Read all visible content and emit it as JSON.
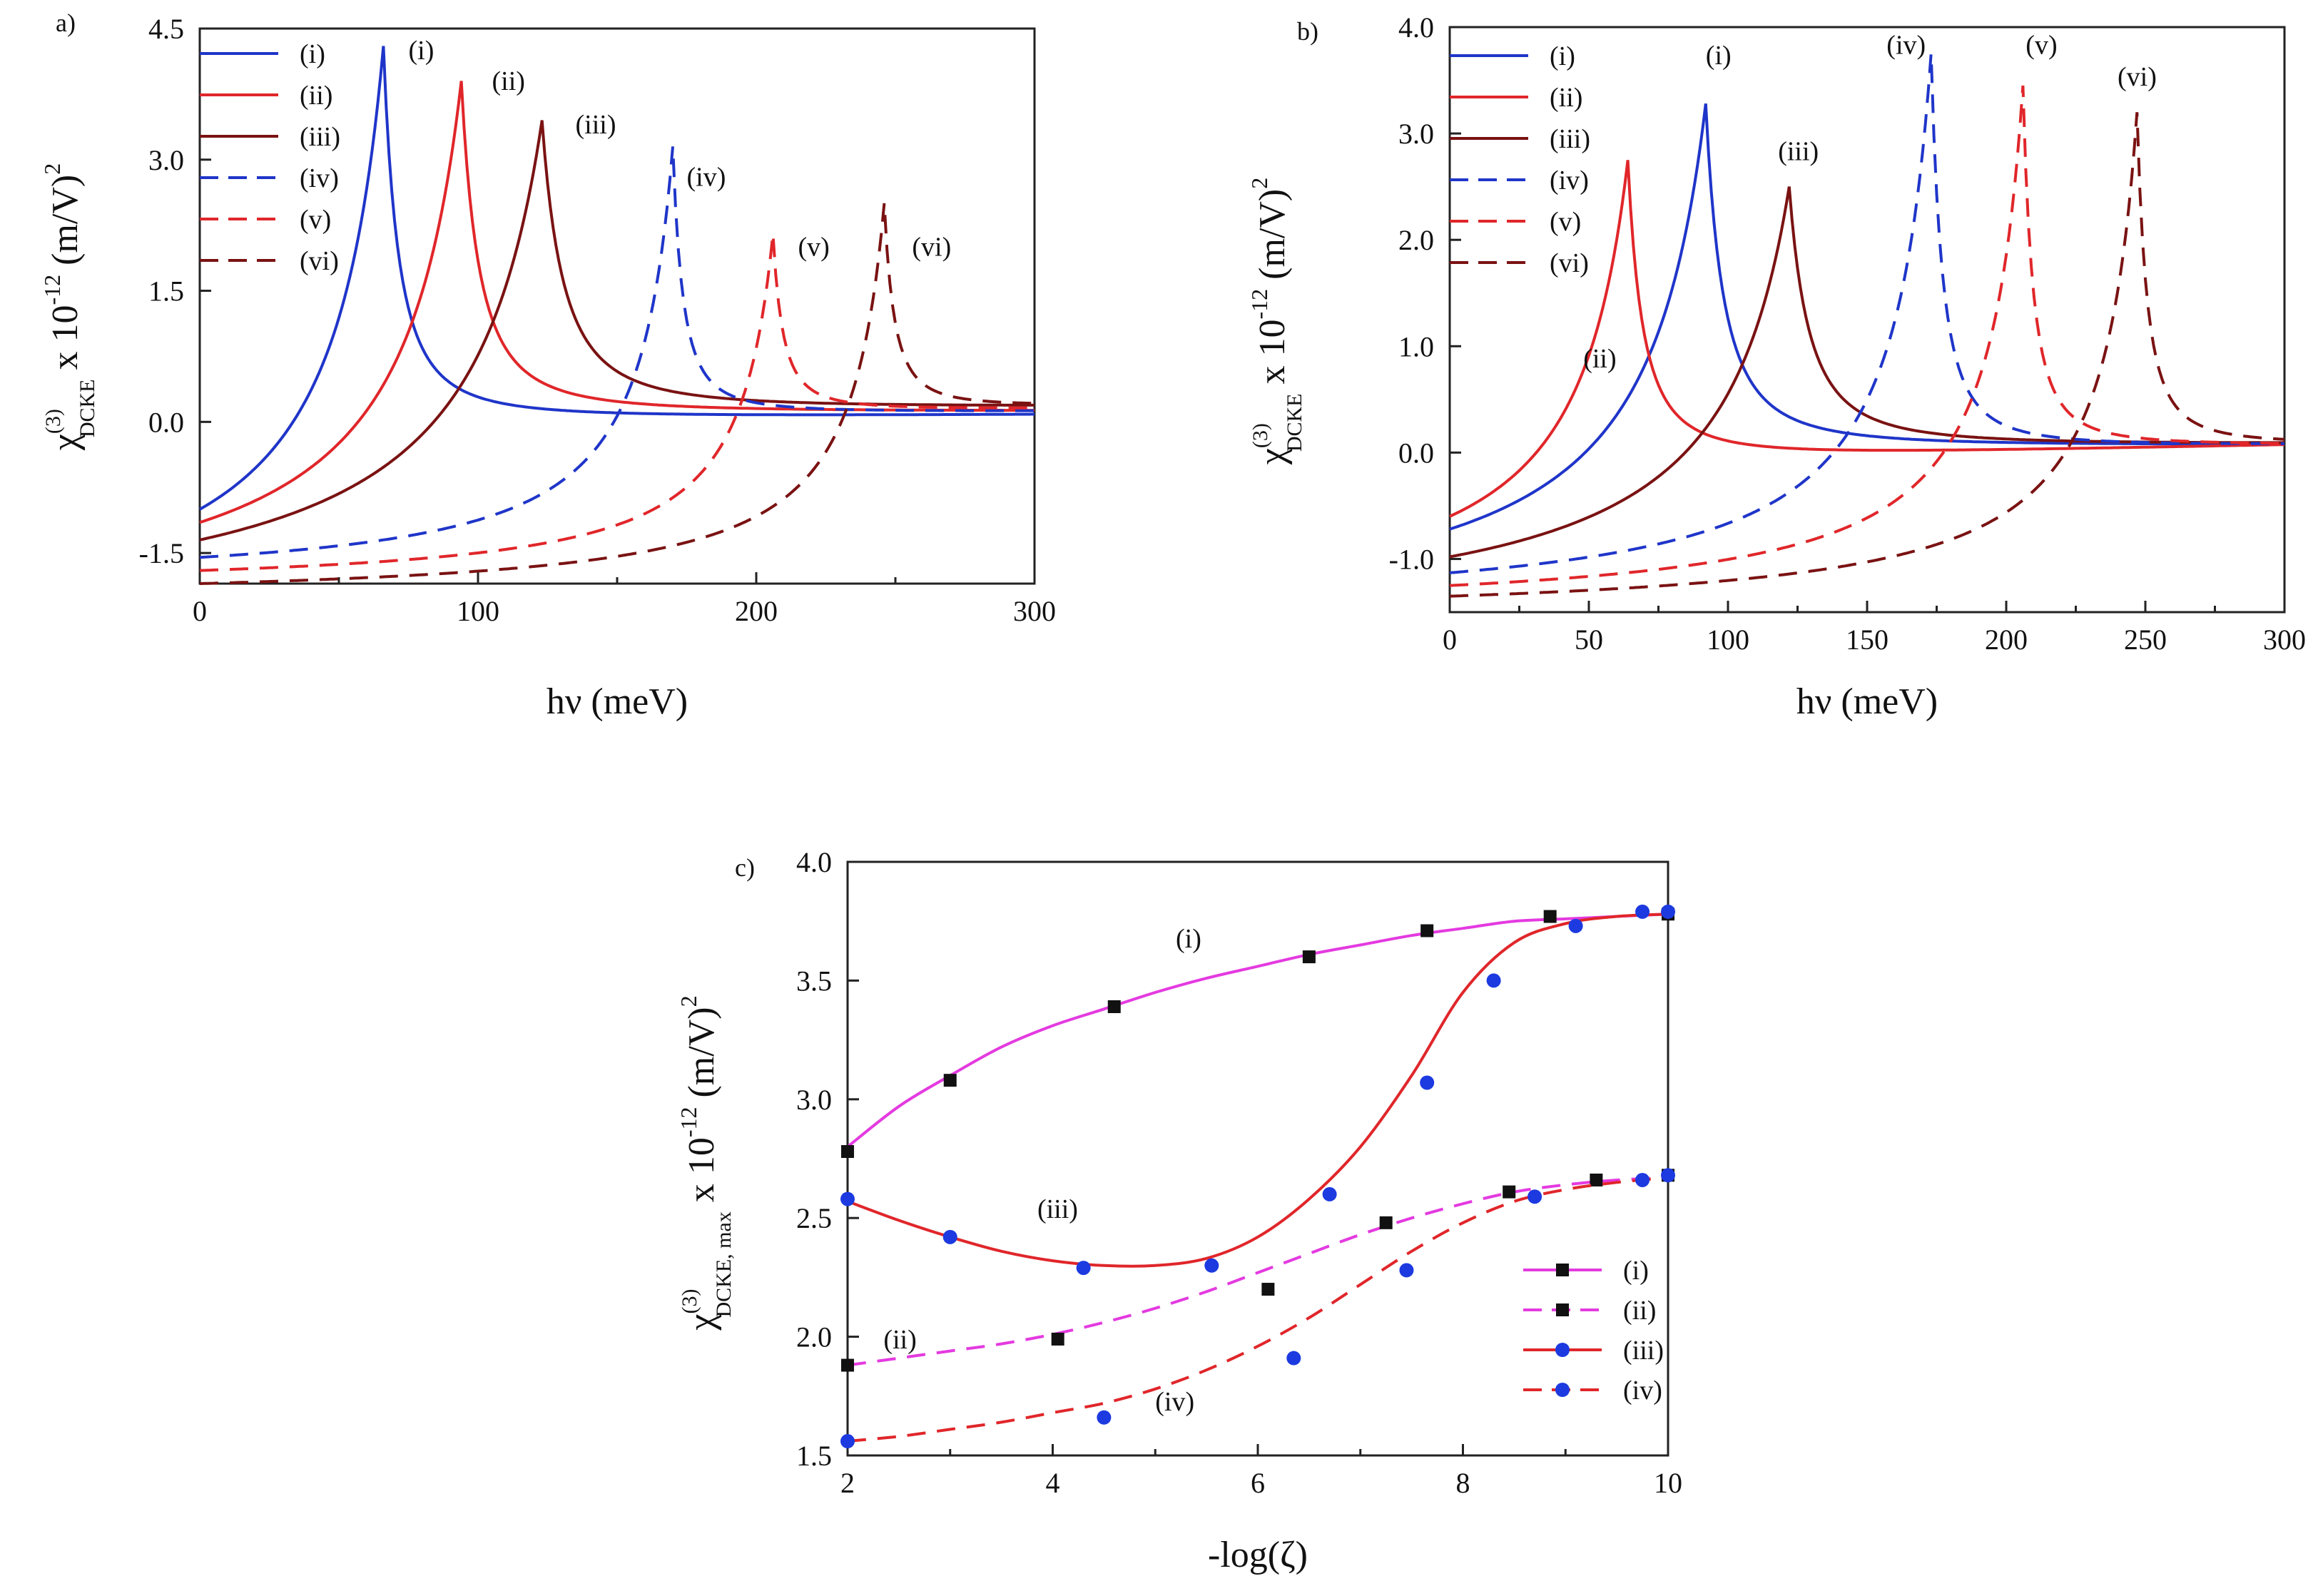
{
  "figure": {
    "colors": {
      "blue": "#1f35c9",
      "red": "#e0262a",
      "darkred": "#7a1212",
      "magenta": "#e43ae0",
      "marker_square": "#111111",
      "marker_circle": "#1c3ae0"
    }
  },
  "chart_data": [
    {
      "panel": "a)",
      "type": "line",
      "xlabel": "hν (meV)",
      "ylabel_main": "χ",
      "ylabel_sup": "(3)",
      "ylabel_sub": "DCKE",
      "ylabel_rest": " x 10",
      "ylabel_exp": "-12",
      "ylabel_unit": " (m/V)",
      "ylabel_unit_exp": "2",
      "xlim": [
        0,
        300
      ],
      "ylim": [
        -1.85,
        4.5
      ],
      "xticks": [
        0,
        100,
        200,
        300
      ],
      "xtick_labels": [
        "0",
        "100",
        "200",
        "300"
      ],
      "yticks": [
        -1.5,
        0.0,
        1.5,
        3.0,
        4.5
      ],
      "ytick_labels": [
        "-1.5",
        "0.0",
        "1.5",
        "3.0",
        "4.5"
      ],
      "legend_position": "top-left",
      "series": [
        {
          "name": "(i)",
          "color": "blue",
          "dash": "solid",
          "start": -1.0,
          "peak_x": 66,
          "peak_y": 4.3,
          "end": 0.08,
          "width": 12,
          "baseline": 0.03,
          "label_x": 75,
          "label_y": 4.15
        },
        {
          "name": "(ii)",
          "color": "red",
          "dash": "solid",
          "start": -1.15,
          "peak_x": 94,
          "peak_y": 3.9,
          "end": 0.12,
          "width": 14,
          "baseline": 0.1,
          "label_x": 105,
          "label_y": 3.8
        },
        {
          "name": "(iii)",
          "color": "darkred",
          "dash": "solid",
          "start": -1.35,
          "peak_x": 123,
          "peak_y": 3.45,
          "end": 0.17,
          "width": 17,
          "baseline": 0.14,
          "label_x": 135,
          "label_y": 3.3
        },
        {
          "name": "(iv)",
          "color": "blue",
          "dash": "dashed",
          "start": -1.55,
          "peak_x": 170,
          "peak_y": 3.15,
          "end": 0.12,
          "width": 8,
          "baseline": 0.1,
          "label_x": 175,
          "label_y": 2.7
        },
        {
          "name": "(v)",
          "color": "red",
          "dash": "dashed",
          "start": -1.7,
          "peak_x": 206,
          "peak_y": 2.15,
          "end": 0.15,
          "width": 8,
          "baseline": 0.13,
          "label_x": 215,
          "label_y": 1.9
        },
        {
          "name": "(vi)",
          "color": "darkred",
          "dash": "dashed",
          "start": -1.85,
          "peak_x": 246,
          "peak_y": 2.5,
          "end": 0.18,
          "width": 8,
          "baseline": 0.16,
          "label_x": 256,
          "label_y": 1.9
        }
      ]
    },
    {
      "panel": "b)",
      "type": "line",
      "xlabel": "hν (meV)",
      "ylabel_main": "χ",
      "ylabel_sup": "(3)",
      "ylabel_sub": "DCKE",
      "ylabel_rest": " x 10",
      "ylabel_exp": "-12",
      "ylabel_unit": " (m/V)",
      "ylabel_unit_exp": "2",
      "xlim": [
        0,
        300
      ],
      "ylim": [
        -1.5,
        4.0
      ],
      "xticks": [
        0,
        50,
        100,
        150,
        200,
        250,
        300
      ],
      "xtick_labels": [
        "0",
        "50",
        "100",
        "150",
        "200",
        "250",
        "300"
      ],
      "yticks": [
        -1.0,
        0.0,
        1.0,
        2.0,
        3.0,
        4.0
      ],
      "ytick_labels": [
        "-1.0",
        "0.0",
        "1.0",
        "2.0",
        "3.0",
        "4.0"
      ],
      "legend_position": "top-left",
      "series": [
        {
          "name": "(i)",
          "color": "blue",
          "dash": "solid",
          "start": -0.72,
          "peak_x": 92,
          "peak_y": 3.28,
          "end": 0.07,
          "width": 14,
          "baseline": 0.05,
          "label_x": 92,
          "label_y": 3.65
        },
        {
          "name": "(ii)",
          "color": "red",
          "dash": "solid",
          "start": -0.6,
          "peak_x": 64,
          "peak_y": 2.75,
          "end": 0.07,
          "width": 12,
          "baseline": -0.06,
          "label_x": 48,
          "label_y": 0.8
        },
        {
          "name": "(iii)",
          "color": "darkred",
          "dash": "solid",
          "start": -0.98,
          "peak_x": 122,
          "peak_y": 2.5,
          "end": 0.08,
          "width": 16,
          "baseline": 0.06,
          "label_x": 118,
          "label_y": 2.75
        },
        {
          "name": "(iv)",
          "color": "blue",
          "dash": "dashed",
          "start": -1.13,
          "peak_x": 173,
          "peak_y": 3.75,
          "end": 0.07,
          "width": 9,
          "baseline": 0.05,
          "label_x": 157,
          "label_y": 3.75
        },
        {
          "name": "(v)",
          "color": "red",
          "dash": "dashed",
          "start": -1.25,
          "peak_x": 206,
          "peak_y": 3.45,
          "end": 0.07,
          "width": 8,
          "baseline": 0.06,
          "label_x": 207,
          "label_y": 3.75
        },
        {
          "name": "(vi)",
          "color": "darkred",
          "dash": "dashed",
          "start": -1.35,
          "peak_x": 247,
          "peak_y": 3.2,
          "end": 0.08,
          "width": 8,
          "baseline": 0.07,
          "label_x": 240,
          "label_y": 3.45
        }
      ]
    },
    {
      "panel": "c)",
      "type": "line",
      "xlabel": "-log(ζ)",
      "ylabel_main": "χ",
      "ylabel_sup": "(3)",
      "ylabel_sub": "DCKE, max",
      "ylabel_rest": " x 10",
      "ylabel_exp": "-12",
      "ylabel_unit": " (m/V)",
      "ylabel_unit_exp": "2",
      "xlim": [
        2,
        10
      ],
      "ylim": [
        1.5,
        4.0
      ],
      "xticks": [
        2,
        4,
        6,
        8,
        10
      ],
      "xtick_labels": [
        "2",
        "4",
        "6",
        "8",
        "10"
      ],
      "yticks": [
        1.5,
        2.0,
        2.5,
        3.0,
        3.5,
        4.0
      ],
      "ytick_labels": [
        "1.5",
        "2.0",
        "2.5",
        "3.0",
        "3.5",
        "4.0"
      ],
      "legend_position": "bottom-right",
      "series": [
        {
          "name": "(i)",
          "color": "magenta",
          "dash": "solid",
          "marker": "square",
          "x": [
            2.0,
            3.0,
            4.6,
            6.5,
            7.65,
            8.85,
            10.0
          ],
          "y": [
            2.78,
            3.08,
            3.39,
            3.6,
            3.71,
            3.77,
            3.78
          ],
          "fit_x": [
            2.0,
            2.5,
            3.0,
            3.5,
            4.0,
            4.5,
            5.0,
            5.5,
            6.0,
            6.5,
            7.0,
            7.5,
            8.0,
            8.5,
            9.0,
            9.5,
            10.0
          ],
          "fit_y": [
            2.8,
            2.97,
            3.1,
            3.22,
            3.31,
            3.38,
            3.45,
            3.51,
            3.56,
            3.61,
            3.65,
            3.69,
            3.72,
            3.75,
            3.76,
            3.77,
            3.78
          ],
          "label_x": 5.2,
          "label_y": 3.64
        },
        {
          "name": "(ii)",
          "color": "magenta",
          "dash": "dashed",
          "marker": "square",
          "x": [
            2.0,
            4.05,
            6.1,
            7.25,
            8.45,
            9.3,
            10.0
          ],
          "y": [
            1.88,
            1.99,
            2.2,
            2.48,
            2.61,
            2.66,
            2.68
          ],
          "fit_x": [
            2.0,
            2.5,
            3.0,
            3.5,
            4.0,
            4.5,
            5.0,
            5.5,
            6.0,
            6.5,
            7.0,
            7.5,
            8.0,
            8.5,
            9.0,
            9.5,
            10.0
          ],
          "fit_y": [
            1.88,
            1.91,
            1.94,
            1.97,
            2.01,
            2.06,
            2.12,
            2.19,
            2.27,
            2.35,
            2.43,
            2.5,
            2.56,
            2.61,
            2.64,
            2.66,
            2.67
          ],
          "label_x": 2.35,
          "label_y": 1.95
        },
        {
          "name": "(iii)",
          "color": "red",
          "dash": "solid",
          "marker": "circle",
          "x": [
            2.0,
            3.0,
            4.3,
            5.55,
            6.7,
            7.65,
            8.3,
            9.1,
            9.75,
            10.0
          ],
          "y": [
            2.58,
            2.42,
            2.29,
            2.3,
            2.6,
            3.07,
            3.5,
            3.73,
            3.79,
            3.79
          ],
          "fit_x": [
            2.0,
            2.5,
            3.0,
            3.5,
            4.0,
            4.5,
            5.0,
            5.5,
            6.0,
            6.5,
            7.0,
            7.5,
            8.0,
            8.5,
            9.0,
            9.5,
            10.0
          ],
          "fit_y": [
            2.57,
            2.49,
            2.42,
            2.36,
            2.32,
            2.3,
            2.3,
            2.33,
            2.42,
            2.58,
            2.8,
            3.1,
            3.45,
            3.66,
            3.74,
            3.77,
            3.78
          ],
          "label_x": 3.85,
          "label_y": 2.5
        },
        {
          "name": "(iv)",
          "color": "red",
          "dash": "dashed",
          "marker": "circle",
          "x": [
            2.0,
            4.5,
            6.35,
            7.45,
            8.7,
            9.75,
            10.0
          ],
          "y": [
            1.56,
            1.66,
            1.91,
            2.28,
            2.59,
            2.66,
            2.68
          ],
          "fit_x": [
            2.0,
            2.5,
            3.0,
            3.5,
            4.0,
            4.5,
            5.0,
            5.5,
            6.0,
            6.5,
            7.0,
            7.5,
            8.0,
            8.5,
            9.0,
            9.5,
            10.0
          ],
          "fit_y": [
            1.56,
            1.58,
            1.61,
            1.64,
            1.68,
            1.72,
            1.78,
            1.86,
            1.96,
            2.08,
            2.22,
            2.36,
            2.48,
            2.57,
            2.62,
            2.65,
            2.67
          ],
          "label_x": 5.0,
          "label_y": 1.69
        }
      ]
    }
  ]
}
